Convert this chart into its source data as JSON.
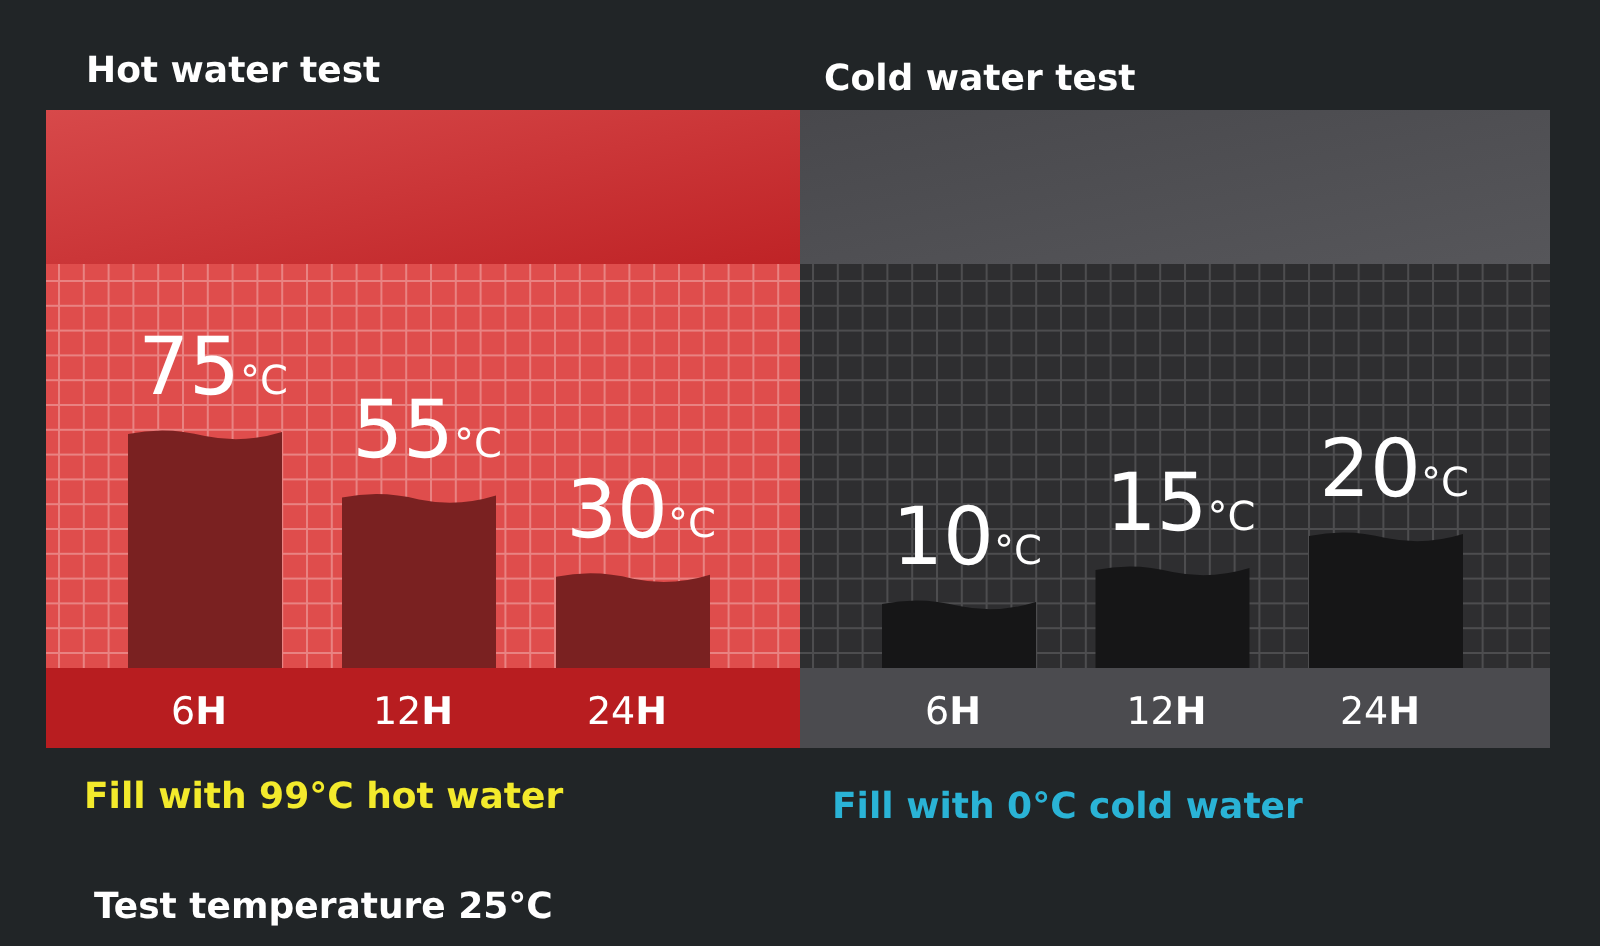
{
  "chart_data": [
    {
      "type": "bar",
      "title": "Hot water test",
      "categories": [
        "6H",
        "12H",
        "24H"
      ],
      "values": [
        75,
        55,
        30
      ],
      "color": "#7a2121",
      "value_labels": [
        "75°C",
        "55°C",
        "30°C"
      ],
      "annotations": [
        "Fill with 99°C hot water",
        "Test temperature 25°C"
      ]
    },
    {
      "type": "bar",
      "title": "Cold water test",
      "categories": [
        "6H",
        "12H",
        "24H"
      ],
      "values": [
        10,
        15,
        20
      ],
      "color": "#161617",
      "value_labels": [
        "10°C",
        "15°C",
        "20°C"
      ],
      "annotations": [
        "Fill with 0°C cold water"
      ]
    }
  ]
}
